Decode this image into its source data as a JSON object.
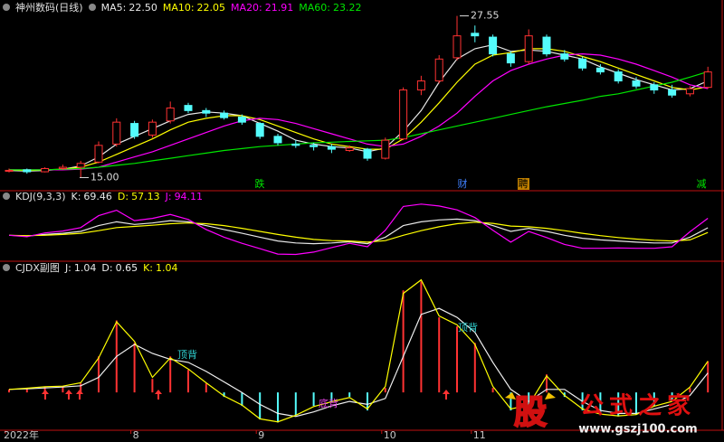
{
  "chart_data": [
    {
      "type": "candlestick",
      "title": "神州数码(日线)",
      "open": [
        15.5,
        15.6,
        15.45,
        15.7,
        15.8,
        16.2,
        17.6,
        19.2,
        18.3,
        19.4,
        20.6,
        20.2,
        20.0,
        19.7,
        19.2,
        18.2,
        17.6,
        17.5,
        17.4,
        17.1,
        17.2,
        16.5,
        18.0,
        21.8,
        22.5,
        24.3,
        26.2,
        25.9,
        24.6,
        24.0,
        25.9,
        24.6,
        24.2,
        23.5,
        23.2,
        22.5,
        22.2,
        21.8,
        21.5,
        22.0
      ],
      "high": [
        15.7,
        15.7,
        15.8,
        16.0,
        16.3,
        17.8,
        19.6,
        19.4,
        19.5,
        20.9,
        20.8,
        20.4,
        20.2,
        19.9,
        19.3,
        18.4,
        17.9,
        17.7,
        17.6,
        17.5,
        17.3,
        18.1,
        22.0,
        22.9,
        24.5,
        27.55,
        26.8,
        26.1,
        24.8,
        26.5,
        26.1,
        24.9,
        24.4,
        23.8,
        23.4,
        22.8,
        22.4,
        22.2,
        22.1,
        23.6
      ],
      "low": [
        15.4,
        15.3,
        15.4,
        15.6,
        15.0,
        16.1,
        17.4,
        18.0,
        18.1,
        19.2,
        20.0,
        19.7,
        19.5,
        19.1,
        18.0,
        17.5,
        17.3,
        17.1,
        16.9,
        17.0,
        16.3,
        16.4,
        17.9,
        21.4,
        22.3,
        24.1,
        25.5,
        24.4,
        23.6,
        23.8,
        24.4,
        24.0,
        23.3,
        23.0,
        22.3,
        21.9,
        21.5,
        21.2,
        21.3,
        21.9
      ],
      "close": [
        15.56,
        15.45,
        15.7,
        15.8,
        16.1,
        17.5,
        19.3,
        18.2,
        19.3,
        20.4,
        20.2,
        20.0,
        19.65,
        19.3,
        18.2,
        17.7,
        17.5,
        17.4,
        17.2,
        17.3,
        16.5,
        17.9,
        21.8,
        22.5,
        24.2,
        26.0,
        26.0,
        24.6,
        23.9,
        26.0,
        24.6,
        24.2,
        23.5,
        23.2,
        22.5,
        22.1,
        21.8,
        21.4,
        21.9,
        23.2
      ],
      "up_color": "#ff3232",
      "down_color": "#54fcfc",
      "ylim": [
        14.4,
        27.8
      ],
      "max_label": {
        "value": 27.55,
        "label": "27.55"
      },
      "min_label": {
        "value": 15,
        "label": "15.00"
      },
      "markers": [
        "跌",
        "财",
        "聘",
        "减"
      ],
      "series": [
        {
          "name": "MA5:",
          "color": "#e8e8e8",
          "legend_value": {
            "value": 22.5,
            "label": "22.50"
          },
          "values": [
            15.55,
            15.5,
            15.55,
            15.65,
            15.9,
            16.6,
            17.6,
            18.2,
            18.8,
            19.4,
            19.9,
            20.1,
            20.0,
            19.8,
            19.2,
            18.6,
            17.9,
            17.6,
            17.4,
            17.3,
            17.0,
            17.3,
            18.6,
            20.2,
            22.4,
            24.2,
            25.0,
            25.3,
            24.8,
            24.9,
            24.8,
            24.5,
            24.2,
            23.6,
            23.1,
            22.6,
            22.2,
            21.8,
            21.9,
            22.5
          ]
        },
        {
          "name": "MA10:",
          "color": "#ffff00",
          "legend_value": 22.05,
          "values": [
            15.6,
            15.55,
            15.6,
            15.65,
            15.8,
            16.2,
            16.8,
            17.4,
            18.0,
            18.7,
            19.3,
            19.6,
            19.8,
            19.8,
            19.5,
            19.0,
            18.5,
            18.0,
            17.6,
            17.4,
            17.2,
            17.2,
            18.0,
            19.3,
            20.8,
            22.4,
            23.8,
            24.5,
            24.7,
            25.0,
            25.0,
            24.8,
            24.4,
            24.0,
            23.5,
            23.0,
            22.5,
            22.0,
            21.8,
            22.05
          ]
        },
        {
          "name": "MA20:",
          "color": "#ff00ff",
          "legend_value": 21.91,
          "values": [
            15.6,
            15.6,
            15.6,
            15.6,
            15.65,
            15.8,
            16.2,
            16.6,
            17.0,
            17.5,
            18.0,
            18.5,
            19.0,
            19.4,
            19.6,
            19.5,
            19.2,
            18.8,
            18.4,
            18.0,
            17.6,
            17.4,
            17.6,
            18.2,
            19.0,
            20.0,
            21.3,
            22.5,
            23.3,
            23.8,
            24.2,
            24.5,
            24.6,
            24.5,
            24.2,
            23.8,
            23.3,
            22.8,
            22.2,
            21.91
          ]
        },
        {
          "name": "MA60:",
          "color": "#00e600",
          "legend_value": 23.22,
          "values": [
            15.6,
            15.6,
            15.6,
            15.65,
            15.7,
            15.8,
            15.95,
            16.1,
            16.3,
            16.5,
            16.7,
            16.9,
            17.1,
            17.25,
            17.4,
            17.5,
            17.6,
            17.7,
            17.75,
            17.8,
            17.85,
            17.9,
            18.1,
            18.4,
            18.7,
            19.0,
            19.3,
            19.6,
            19.9,
            20.2,
            20.5,
            20.75,
            21.0,
            21.3,
            21.5,
            21.8,
            22.1,
            22.4,
            22.8,
            23.22
          ]
        }
      ]
    },
    {
      "type": "line",
      "title": "KDJ(9,3,3)",
      "ylim": [
        -20,
        140
      ],
      "series": [
        {
          "name": "K:",
          "color": "#e8e8e8",
          "legend_value": 69.46,
          "values": [
            50,
            48,
            52,
            55,
            60,
            75,
            85,
            78,
            82,
            88,
            85,
            75,
            65,
            55,
            45,
            35,
            30,
            28,
            30,
            33,
            28,
            45,
            75,
            85,
            90,
            92,
            88,
            75,
            60,
            68,
            60,
            50,
            42,
            38,
            35,
            32,
            30,
            30,
            45,
            69.46
          ]
        },
        {
          "name": "D:",
          "color": "#ffff00",
          "legend_value": 57.13,
          "values": [
            50,
            49,
            50,
            52,
            55,
            62,
            70,
            73,
            76,
            80,
            82,
            80,
            75,
            68,
            60,
            52,
            45,
            39,
            36,
            35,
            32,
            36,
            50,
            62,
            72,
            80,
            84,
            81,
            74,
            72,
            68,
            62,
            55,
            49,
            44,
            40,
            37,
            35,
            38,
            57.13
          ]
        },
        {
          "name": "J:",
          "color": "#ff00ff",
          "legend_value": 94.11,
          "values": [
            50,
            46,
            56,
            61,
            70,
            101,
            115,
            88,
            94,
            104,
            91,
            65,
            45,
            29,
            15,
            1,
            0,
            6,
            18,
            29,
            20,
            63,
            125,
            131,
            126,
            116,
            96,
            63,
            32,
            60,
            44,
            26,
            16,
            16,
            17,
            16,
            16,
            20,
            59,
            94.11
          ]
        }
      ]
    },
    {
      "type": "oscillator",
      "title": "CJDX副图",
      "ylim": [
        -1.2,
        4.1
      ],
      "positive_color": "#ff3232",
      "negative_color": "#54fcfc",
      "annotations": [
        "顶背",
        "顶背",
        "底背"
      ],
      "categories": [
        "2022年",
        null,
        null,
        null,
        null,
        null,
        null,
        "8",
        null,
        null,
        null,
        null,
        null,
        null,
        "9",
        null,
        null,
        null,
        null,
        null,
        null,
        "10",
        null,
        null,
        null,
        null,
        "11",
        null,
        null,
        null,
        null,
        null,
        null,
        null,
        null,
        null,
        null,
        null,
        null,
        null
      ],
      "series": [
        {
          "name": "J:",
          "color": "#e8e8e8",
          "legend_value": 1.04,
          "values": [
            0.1,
            0.15,
            0.2,
            0.2,
            0.3,
            1.2,
            2.4,
            1.65,
            0.45,
            1.2,
            0.75,
            0.3,
            -0.15,
            -0.45,
            -0.9,
            -1.0,
            -0.75,
            -0.45,
            -0.3,
            -0.15,
            -0.6,
            0.15,
            3.4,
            3.7,
            2.5,
            2.2,
            1.65,
            0.15,
            -0.6,
            -0.45,
            0.6,
            -0.15,
            -0.6,
            -0.75,
            -0.8,
            -0.75,
            -0.45,
            -0.3,
            0.15,
            1.04
          ]
        },
        {
          "name": "D:",
          "color": "#f0f0f0",
          "legend_value": 0.65,
          "values": [
            0.1,
            0.12,
            0.15,
            0.18,
            0.22,
            0.5,
            1.2,
            1.6,
            1.3,
            1.1,
            1.0,
            0.7,
            0.35,
            0.0,
            -0.4,
            -0.7,
            -0.8,
            -0.65,
            -0.45,
            -0.3,
            -0.4,
            -0.2,
            1.2,
            2.6,
            2.8,
            2.5,
            2.0,
            1.0,
            0.1,
            -0.3,
            0.1,
            0.1,
            -0.3,
            -0.6,
            -0.7,
            -0.7,
            -0.55,
            -0.4,
            -0.1,
            0.65
          ]
        },
        {
          "name": "K:",
          "color": "#ffff00",
          "legend_value": 1.04,
          "values": [
            0.1,
            0.14,
            0.19,
            0.21,
            0.32,
            1.15,
            2.35,
            1.7,
            0.5,
            1.15,
            0.78,
            0.32,
            -0.12,
            -0.42,
            -0.88,
            -0.98,
            -0.76,
            -0.47,
            -0.31,
            -0.17,
            -0.55,
            0.2,
            3.3,
            3.75,
            2.55,
            2.25,
            1.6,
            0.2,
            -0.55,
            -0.42,
            0.55,
            -0.1,
            -0.55,
            -0.72,
            -0.78,
            -0.74,
            -0.46,
            -0.3,
            0.18,
            1.04
          ]
        }
      ]
    }
  ],
  "watermark": {
    "logo": "股",
    "site_name": "公式之家",
    "url": "www.gszj100.com"
  }
}
